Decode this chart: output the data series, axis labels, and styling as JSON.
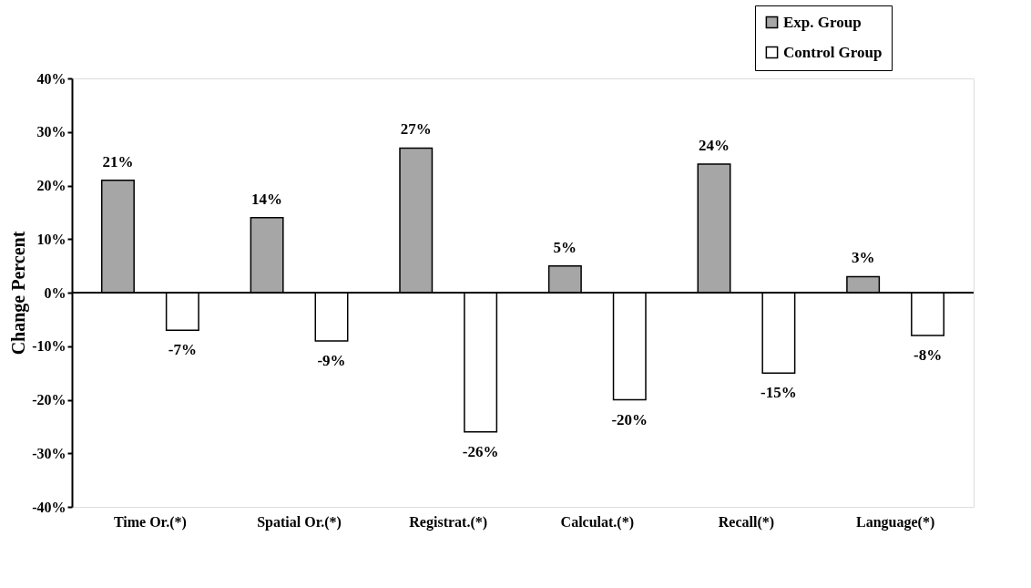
{
  "chart_data": {
    "type": "bar",
    "ylabel": "Change Percent",
    "categories": [
      "Time Or.(*)",
      "Spatial Or.(*)",
      "Registrat.(*)",
      "Calculat.(*)",
      "Recall(*)",
      "Language(*)"
    ],
    "series": [
      {
        "name": "Exp. Group",
        "color": "#a6a6a6",
        "values": [
          21,
          14,
          27,
          5,
          24,
          3
        ],
        "value_labels": [
          "21%",
          "14%",
          "27%",
          "5%",
          "24%",
          "3%"
        ]
      },
      {
        "name": "Control Group",
        "color": "#ffffff",
        "values": [
          -7,
          -9,
          -26,
          -20,
          -15,
          -8
        ],
        "value_labels": [
          "-7%",
          "-9%",
          "-26%",
          "-20%",
          "-15%",
          "-8%"
        ]
      }
    ],
    "ylim": [
      -40,
      40
    ],
    "yticks": [
      {
        "value": -40,
        "label": "-40%"
      },
      {
        "value": -30,
        "label": "-30%"
      },
      {
        "value": -20,
        "label": "-20%"
      },
      {
        "value": -10,
        "label": "-10%"
      },
      {
        "value": 0,
        "label": "0%"
      },
      {
        "value": 10,
        "label": "10%"
      },
      {
        "value": 20,
        "label": "20%"
      },
      {
        "value": 30,
        "label": "30%"
      },
      {
        "value": 40,
        "label": "40%"
      }
    ],
    "legend": "top right"
  }
}
